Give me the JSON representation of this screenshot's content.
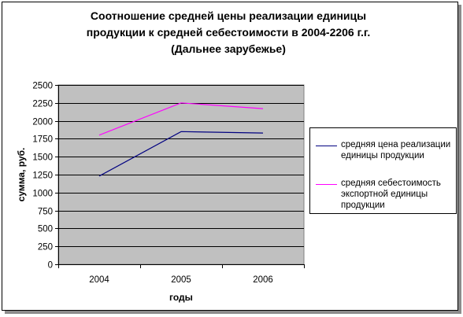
{
  "chart_data": {
    "type": "line",
    "title_lines": [
      "Соотношение средней цены реализации единицы",
      "продукции к средней себестоимости в 2004-2206 г.г.",
      "(Дальнее зарубежье)"
    ],
    "xlabel": "годы",
    "ylabel": "сумма, руб.",
    "categories": [
      "2004",
      "2005",
      "2006"
    ],
    "ylim": [
      0,
      2500
    ],
    "yticks": [
      0,
      250,
      500,
      750,
      1000,
      1250,
      1500,
      1750,
      2000,
      2250,
      2500
    ],
    "grid": true,
    "legend_position": "right",
    "plot_background": "#c0c0c0",
    "series": [
      {
        "name": "средняя цена реализации единицы продукции",
        "legend_lines": [
          "средняя цена реализации",
          "единицы продукции"
        ],
        "values": [
          1230,
          1850,
          1830
        ],
        "color": "#000080"
      },
      {
        "name": "средняя себестоимость экспортной единицы продукции",
        "legend_lines": [
          "средняя себестоимость",
          "экспортной единицы",
          "продукции"
        ],
        "values": [
          1800,
          2250,
          2170
        ],
        "color": "#ff00ff"
      }
    ]
  }
}
